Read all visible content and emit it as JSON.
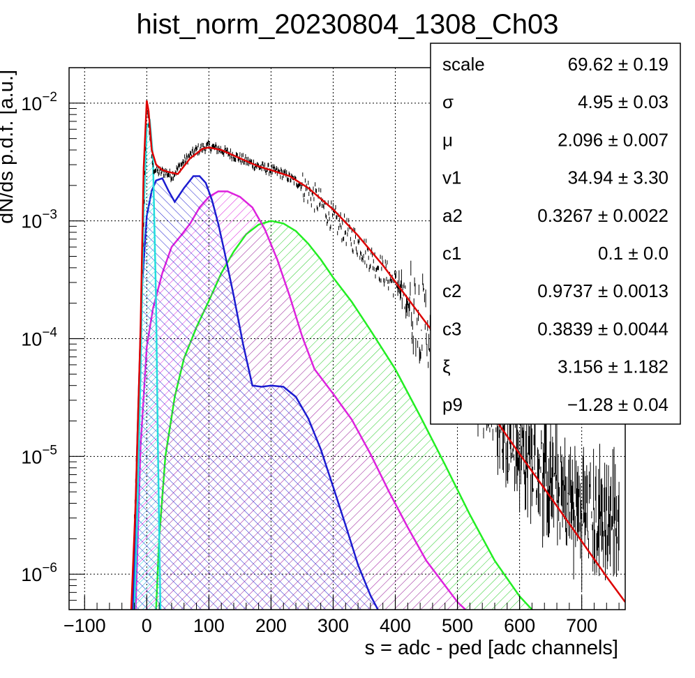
{
  "chart_data": {
    "type": "line",
    "title": "hist_norm_20230804_1308_Ch03",
    "xlabel": "s = adc - ped [adc channels]",
    "ylabel": "dN/ds p.d.f. [a.u.]",
    "xlim": [
      -125,
      770
    ],
    "ylim": [
      5e-07,
      0.02
    ],
    "yscale": "log",
    "grid": true,
    "x_ticks": [
      "−100",
      "0",
      "100",
      "200",
      "300",
      "400",
      "500",
      "600",
      "700"
    ],
    "x_tick_values": [
      -100,
      0,
      100,
      200,
      300,
      400,
      500,
      600,
      700
    ],
    "y_ticks": [
      {
        "base": "10",
        "exp": "−2",
        "value": 0.01
      },
      {
        "base": "10",
        "exp": "−3",
        "value": 0.001
      },
      {
        "base": "10",
        "exp": "−4",
        "value": 0.0001
      },
      {
        "base": "10",
        "exp": "−5",
        "value": 1e-05
      },
      {
        "base": "10",
        "exp": "−6",
        "value": 1e-06
      }
    ],
    "series": [
      {
        "color": "#000000",
        "style": "histogram",
        "x": [
          -20,
          -10,
          0,
          10,
          20,
          30,
          40,
          60,
          80,
          100,
          120,
          150,
          180,
          200,
          220,
          250,
          280,
          300,
          330,
          360,
          400,
          430,
          460,
          500,
          530,
          560,
          600,
          640,
          680,
          720,
          760
        ],
        "y": [
          3e-06,
          0.0001,
          0.0095,
          0.0028,
          0.0026,
          0.0026,
          0.0024,
          0.0032,
          0.004,
          0.0043,
          0.004,
          0.0034,
          0.0029,
          0.0027,
          0.0025,
          0.002,
          0.0014,
          0.00105,
          0.00073,
          0.00049,
          0.00029,
          0.000185,
          0.000115,
          6e-05,
          4e-05,
          2.5e-05,
          1.2e-05,
          7e-06,
          4e-06,
          3e-06,
          3e-06
        ]
      },
      {
        "color": "#dd0000",
        "style": "fit",
        "x": [
          -25,
          -18,
          -10,
          -5,
          0,
          3,
          8,
          15,
          25,
          35,
          50,
          70,
          90,
          100,
          120,
          150,
          180,
          200,
          230,
          260,
          300,
          340,
          380,
          420,
          460,
          500,
          550,
          600,
          650,
          700,
          740,
          770
        ],
        "y": [
          5e-07,
          4e-06,
          0.00012,
          0.0028,
          0.0105,
          0.0085,
          0.004,
          0.003,
          0.0027,
          0.0026,
          0.0025,
          0.0034,
          0.0041,
          0.0042,
          0.004,
          0.0034,
          0.0029,
          0.0027,
          0.0024,
          0.0019,
          0.00125,
          0.00075,
          0.00042,
          0.00022,
          0.000115,
          5.8e-05,
          2.5e-05,
          1.05e-05,
          4.5e-06,
          1.9e-06,
          9.5e-07,
          5.8e-07
        ]
      },
      {
        "color": "#1c1cd0",
        "style": "hatched",
        "x": [
          -22,
          -15,
          -8,
          0,
          8,
          15,
          25,
          35,
          45,
          60,
          75,
          85,
          95,
          105,
          115,
          125,
          140,
          155,
          170,
          185,
          200,
          220,
          240,
          260,
          280,
          300,
          320,
          340,
          360,
          372
        ],
        "y": [
          5e-07,
          1.5e-05,
          0.00025,
          0.0011,
          0.0018,
          0.0022,
          0.0023,
          0.0018,
          0.00145,
          0.0019,
          0.0024,
          0.0024,
          0.0021,
          0.0015,
          0.00095,
          0.00055,
          0.00023,
          9e-05,
          4e-05,
          3.9e-05,
          4e-05,
          3.9e-05,
          3.2e-05,
          2.1e-05,
          1.15e-05,
          5.5e-06,
          2.6e-06,
          1.2e-06,
          6.6e-07,
          5e-07
        ]
      },
      {
        "color": "#dd22dd",
        "style": "hatched",
        "x": [
          -18,
          -10,
          0,
          10,
          25,
          40,
          55,
          70,
          85,
          100,
          115,
          130,
          150,
          170,
          190,
          210,
          230,
          250,
          270,
          300,
          330,
          360,
          390,
          420,
          450,
          480,
          500,
          513
        ],
        "y": [
          5e-07,
          1.2e-05,
          8.5e-05,
          0.00018,
          0.00036,
          0.0006,
          0.00075,
          0.00095,
          0.0013,
          0.0016,
          0.00178,
          0.00178,
          0.0016,
          0.0013,
          0.00085,
          0.00047,
          0.00023,
          0.000105,
          5.5e-05,
          3.4e-05,
          2.05e-05,
          1.05e-05,
          5e-06,
          2.5e-06,
          1.3e-06,
          8e-07,
          5.8e-07,
          5e-07
        ]
      },
      {
        "color": "#22ee22",
        "style": "hatched",
        "x": [
          15,
          20,
          30,
          45,
          60,
          80,
          100,
          120,
          140,
          160,
          180,
          200,
          220,
          240,
          260,
          280,
          300,
          330,
          360,
          400,
          440,
          480,
          520,
          560,
          600,
          620
        ],
        "y": [
          5e-07,
          2e-06,
          1e-05,
          3.2e-05,
          6.8e-05,
          0.000125,
          0.00021,
          0.00036,
          0.00055,
          0.00077,
          0.00093,
          0.001,
          0.00095,
          0.00082,
          0.00064,
          0.00047,
          0.00033,
          0.000205,
          0.000118,
          5.5e-05,
          2.2e-05,
          8.5e-06,
          3.2e-06,
          1.3e-06,
          6.5e-07,
          5e-07
        ]
      },
      {
        "color": "#22dddd",
        "style": "hatched",
        "x": [
          -20,
          -15,
          -10,
          -5,
          0,
          5,
          10,
          15,
          18,
          22
        ],
        "y": [
          5e-07,
          3.5e-06,
          5e-05,
          0.0012,
          0.0063,
          0.007,
          0.0035,
          0.0002,
          1.2e-05,
          5e-07
        ]
      }
    ],
    "legend_position": "top-right",
    "stats": [
      {
        "name": "scale",
        "value": "69.62 ± 0.19"
      },
      {
        "name": "σ",
        "value": "4.95 ± 0.03"
      },
      {
        "name": "μ",
        "value": "2.096 ± 0.007"
      },
      {
        "name": "v1",
        "value": "34.94 ± 3.30"
      },
      {
        "name": "a2",
        "value": "0.3267 ± 0.0022"
      },
      {
        "name": "c1",
        "value": "0.1 ± 0.0"
      },
      {
        "name": "c2",
        "value": "0.9737 ± 0.0013"
      },
      {
        "name": "c3",
        "value": "0.3839 ± 0.0044"
      },
      {
        "name": "ξ",
        "value": "3.156 ± 1.182"
      },
      {
        "name": "p9",
        "value": "−1.28 ± 0.04"
      }
    ]
  }
}
